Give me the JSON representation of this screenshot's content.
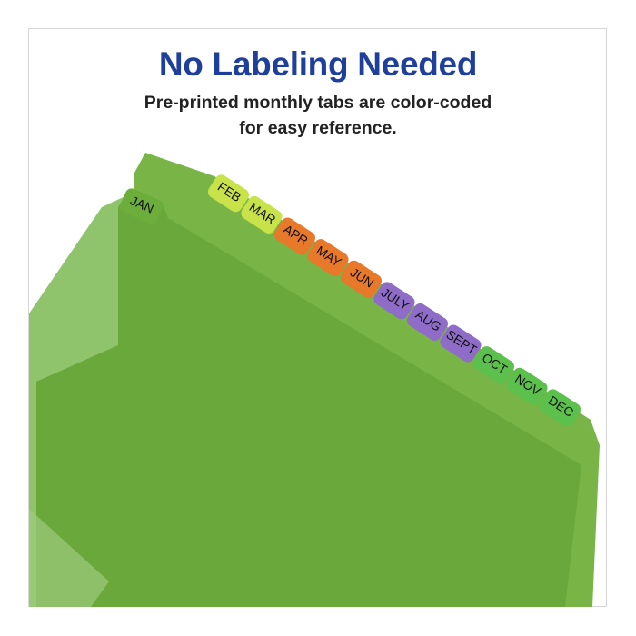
{
  "headline": "No Labeling Needed",
  "subtitle_lines": [
    "Pre-printed monthly tabs are color-coded",
    "for easy reference."
  ],
  "tabs": [
    {
      "label": "JAN",
      "color": "#6cae3c"
    },
    {
      "label": "FEB",
      "color": "#c8e24a"
    },
    {
      "label": "MAR",
      "color": "#c8e24a"
    },
    {
      "label": "APR",
      "color": "#e8782a"
    },
    {
      "label": "MAY",
      "color": "#e8782a"
    },
    {
      "label": "JUN",
      "color": "#e8782a"
    },
    {
      "label": "JULY",
      "color": "#8e6cc8"
    },
    {
      "label": "AUG",
      "color": "#8e6cc8"
    },
    {
      "label": "SEPT",
      "color": "#8e6cc8"
    },
    {
      "label": "OCT",
      "color": "#5cc04c"
    },
    {
      "label": "NOV",
      "color": "#5cc04c"
    },
    {
      "label": "DEC",
      "color": "#5cc04c"
    }
  ],
  "colors": {
    "headline": "#1f3f9c",
    "folder": "#6aa83c",
    "folder_light": "#8cc46a"
  }
}
